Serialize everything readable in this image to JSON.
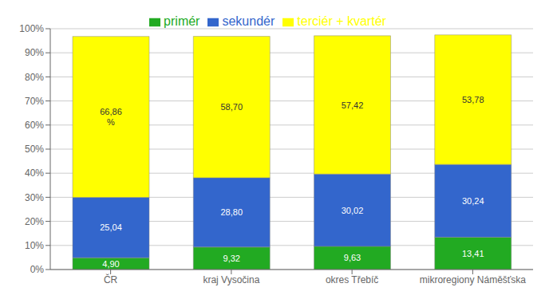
{
  "chart_data": {
    "type": "bar",
    "stacked": true,
    "data_labels": true,
    "grid": true,
    "legend": "top",
    "categories": [
      "ČR",
      "kraj Vysočina",
      "okres Třebíč",
      "mikroregiony Náměšťska"
    ],
    "series": [
      {
        "name": "primér",
        "color": "#22aa22",
        "values": [
          4.9,
          9.32,
          9.63,
          13.41
        ],
        "value_labels": [
          "4,90",
          "9,32",
          "9,63",
          "13,41"
        ]
      },
      {
        "name": "sekundér",
        "color": "#3366cc",
        "values": [
          25.04,
          28.8,
          30.02,
          30.24
        ],
        "value_labels": [
          "25,04",
          "28,80",
          "30,02",
          "30,24"
        ]
      },
      {
        "name": "terciér + kvartér",
        "color": "#ffff00",
        "values": [
          66.86,
          58.7,
          57.42,
          53.78
        ],
        "value_labels": [
          "66,86\n%",
          "58,70",
          "57,42",
          "53,78"
        ]
      }
    ],
    "ylim": [
      0,
      100
    ],
    "yticks": [
      {
        "value": 0,
        "label": "0%"
      },
      {
        "value": 10,
        "label": "10%"
      },
      {
        "value": 20,
        "label": "20%"
      },
      {
        "value": 30,
        "label": "30%"
      },
      {
        "value": 40,
        "label": "40%"
      },
      {
        "value": 50,
        "label": "50%"
      },
      {
        "value": 60,
        "label": "60%"
      },
      {
        "value": 70,
        "label": "70%"
      },
      {
        "value": 80,
        "label": "80%"
      },
      {
        "value": 90,
        "label": "90%"
      },
      {
        "value": 100,
        "label": "100%"
      }
    ]
  }
}
